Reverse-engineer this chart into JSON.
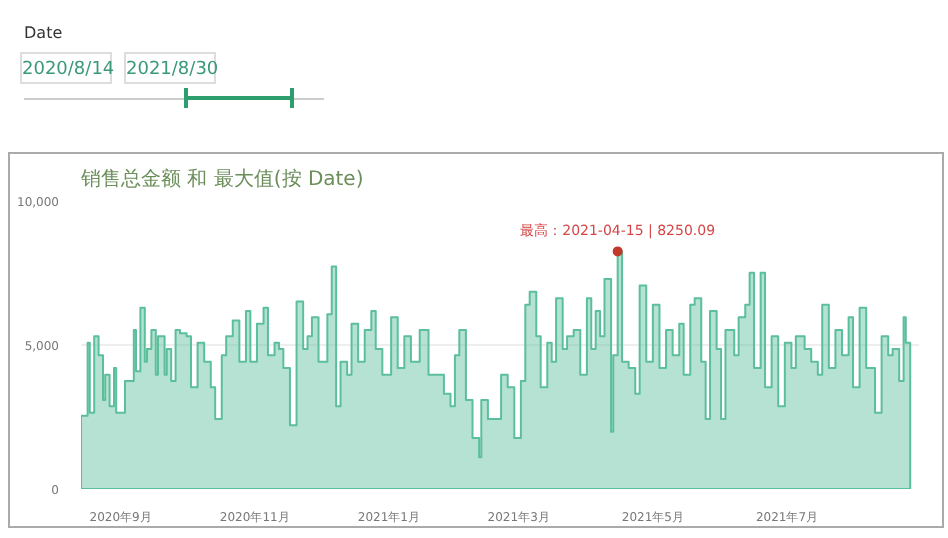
{
  "chart_data": {
    "type": "area",
    "title": "销售总金额 和 最大值(按 Date)",
    "annotations": [
      "Date",
      "2020/8/14",
      "2021/8/30",
      {
        "text": "最高：2021-04-15 | 8250.09",
        "x": "2021-04-15",
        "y": 8250.09
      }
    ],
    "x": [
      "2020-08-14",
      "2020-08-17",
      "2020-08-18",
      "2020-08-20",
      "2020-08-22",
      "2020-08-24",
      "2020-08-25",
      "2020-08-27",
      "2020-08-29",
      "2020-08-30",
      "2020-09-01",
      "2020-09-03",
      "2020-09-05",
      "2020-09-07",
      "2020-09-08",
      "2020-09-10",
      "2020-09-12",
      "2020-09-13",
      "2020-09-15",
      "2020-09-17",
      "2020-09-18",
      "2020-09-21",
      "2020-09-22",
      "2020-09-24",
      "2020-09-26",
      "2020-09-28",
      "2020-10-01",
      "2020-10-03",
      "2020-10-06",
      "2020-10-09",
      "2020-10-12",
      "2020-10-14",
      "2020-10-17",
      "2020-10-19",
      "2020-10-22",
      "2020-10-25",
      "2020-10-28",
      "2020-10-30",
      "2020-11-02",
      "2020-11-05",
      "2020-11-07",
      "2020-11-10",
      "2020-11-12",
      "2020-11-14",
      "2020-11-17",
      "2020-11-20",
      "2020-11-23",
      "2020-11-25",
      "2020-11-27",
      "2020-11-30",
      "2020-12-04",
      "2020-12-06",
      "2020-12-08",
      "2020-12-10",
      "2020-12-13",
      "2020-12-15",
      "2020-12-18",
      "2020-12-21",
      "2020-12-24",
      "2020-12-26",
      "2020-12-29",
      "2021-01-02",
      "2021-01-05",
      "2021-01-08",
      "2021-01-11",
      "2021-01-15",
      "2021-01-19",
      "2021-01-22",
      "2021-01-26",
      "2021-01-29",
      "2021-01-31",
      "2021-02-02",
      "2021-02-05",
      "2021-02-08",
      "2021-02-11",
      "2021-02-12",
      "2021-02-15",
      "2021-02-18",
      "2021-02-21",
      "2021-02-24",
      "2021-02-27",
      "2021-03-02",
      "2021-03-04",
      "2021-03-06",
      "2021-03-09",
      "2021-03-11",
      "2021-03-14",
      "2021-03-16",
      "2021-03-18",
      "2021-03-21",
      "2021-03-23",
      "2021-03-26",
      "2021-03-29",
      "2021-04-01",
      "2021-04-03",
      "2021-04-05",
      "2021-04-07",
      "2021-04-09",
      "2021-04-12",
      "2021-04-13",
      "2021-04-15",
      "2021-04-17",
      "2021-04-20",
      "2021-04-23",
      "2021-04-25",
      "2021-04-28",
      "2021-05-01",
      "2021-05-04",
      "2021-05-07",
      "2021-05-10",
      "2021-05-13",
      "2021-05-15",
      "2021-05-18",
      "2021-05-20",
      "2021-05-23",
      "2021-05-25",
      "2021-05-27",
      "2021-05-30",
      "2021-06-01",
      "2021-06-03",
      "2021-06-07",
      "2021-06-09",
      "2021-06-12",
      "2021-06-14",
      "2021-06-16",
      "2021-06-19",
      "2021-06-21",
      "2021-06-24",
      "2021-06-27",
      "2021-06-30",
      "2021-07-03",
      "2021-07-05",
      "2021-07-09",
      "2021-07-12",
      "2021-07-15",
      "2021-07-17",
      "2021-07-20",
      "2021-07-23",
      "2021-07-26",
      "2021-07-29",
      "2021-07-31",
      "2021-08-03",
      "2021-08-06",
      "2021-08-10",
      "2021-08-13",
      "2021-08-16",
      "2021-08-18",
      "2021-08-21",
      "2021-08-23",
      "2021-08-24",
      "2021-08-26"
    ],
    "series": [
      {
        "color": "#5cbf9c",
        "values": [
          2540,
          5080,
          2650,
          5300,
          4640,
          3090,
          3970,
          2870,
          4200,
          2650,
          2650,
          3750,
          3750,
          5520,
          4090,
          6290,
          4420,
          4860,
          5520,
          3970,
          5300,
          3970,
          4860,
          3750,
          5520,
          5410,
          5300,
          3530,
          5080,
          4420,
          3530,
          2430,
          4640,
          5300,
          5850,
          4420,
          6180,
          4420,
          5740,
          6290,
          4640,
          5080,
          4860,
          4200,
          2210,
          6510,
          4860,
          5300,
          5960,
          4420,
          6070,
          7730,
          2870,
          4420,
          3970,
          5740,
          4420,
          5520,
          6180,
          4860,
          3970,
          5960,
          4200,
          5300,
          4420,
          5520,
          3970,
          3970,
          3310,
          2870,
          4640,
          5520,
          3090,
          1770,
          1100,
          3090,
          2430,
          2430,
          3970,
          3530,
          1770,
          3750,
          6400,
          6850,
          5300,
          3530,
          5080,
          4420,
          6620,
          4860,
          5300,
          5520,
          3970,
          6620,
          4860,
          6180,
          5300,
          7290,
          1990,
          4640,
          8250.09,
          4420,
          4200,
          3310,
          7070,
          4420,
          6400,
          4200,
          5520,
          4640,
          5740,
          3970,
          6400,
          6620,
          4420,
          2430,
          6180,
          4860,
          2430,
          5520,
          4640,
          5960,
          6400,
          7510,
          4200,
          7510,
          3530,
          5300,
          2870,
          5080,
          4200,
          5300,
          4860,
          4420,
          3970,
          6400,
          4200,
          5520,
          4640,
          5960,
          3530,
          6290,
          4200,
          2650,
          5300,
          4640,
          4860,
          3750,
          5960,
          5080,
          4860
        ]
      }
    ],
    "xlim": [
      "2020-08-14",
      "2021-08-30"
    ],
    "xticks": [
      {
        "value": "2020-09-01",
        "label": "2020年9月"
      },
      {
        "value": "2020-11-01",
        "label": "2020年11月"
      },
      {
        "value": "2021-01-01",
        "label": "2021年1月"
      },
      {
        "value": "2021-03-01",
        "label": "2021年3月"
      },
      {
        "value": "2021-05-01",
        "label": "2021年5月"
      },
      {
        "value": "2021-07-01",
        "label": "2021年7月"
      }
    ],
    "ylim": [
      0,
      10000
    ],
    "yticks": [
      {
        "value": 0,
        "label": "0"
      },
      {
        "value": 5000,
        "label": "5,000"
      },
      {
        "value": 10000,
        "label": "10,000"
      }
    ],
    "grid": "y"
  }
}
